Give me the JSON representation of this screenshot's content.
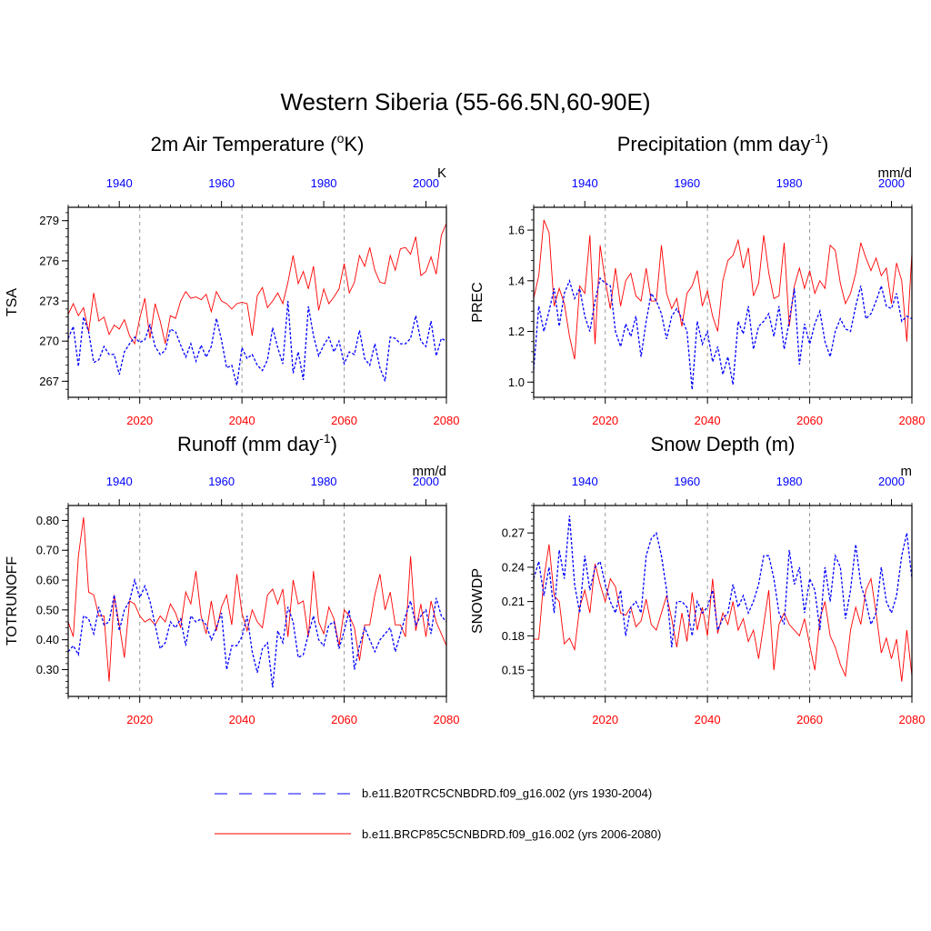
{
  "figure": {
    "title": "Western Siberia (55-66.5N,60-90E)",
    "legend": [
      {
        "label": "b.e11.B20TRC5CNBDRD.f09_g16.002 (yrs 1930-2004)",
        "color": "#0000ff",
        "style": "dashed"
      },
      {
        "label": "b.e11.BRCP85C5CNBDRD.f09_g16.002 (yrs 2006-2080)",
        "color": "#ff0000",
        "style": "solid"
      }
    ]
  },
  "colors": {
    "future": "#ff0000",
    "historical": "#0000ff",
    "frame": "#000000",
    "gridline": "#999999"
  },
  "chart_data": [
    {
      "type": "line",
      "title_main": "2m Air Temperature (",
      "title_sup": "o",
      "title_tail": "K)",
      "ylabel": "TSA",
      "units": "K",
      "ylim": [
        265.8,
        280
      ],
      "yticks": [
        267,
        270,
        273,
        276,
        279
      ],
      "ytick_labels": [
        "267",
        "270",
        "273",
        "276",
        "279"
      ],
      "minor_step": 0.6,
      "bottom_xlim": [
        2006,
        2080
      ],
      "bottom_xticks": [
        2020,
        2040,
        2060,
        2080
      ],
      "top_xlim": [
        1930,
        2004
      ],
      "top_xticks": [
        1940,
        1960,
        1980,
        2000
      ],
      "grid_x": [
        2020,
        2040,
        2060
      ],
      "series": [
        {
          "name": "b.e11.BRCP85C5CNBDRD.f09_g16.002 (yrs 2006-2080)",
          "axis": "bottom",
          "x_start": 2006,
          "values": [
            272.0,
            272.8,
            271.9,
            272.5,
            270.7,
            273.6,
            271.5,
            271.8,
            270.5,
            271.2,
            270.9,
            271.6,
            270.4,
            269.8,
            271.7,
            273.2,
            270.2,
            272.8,
            271.5,
            269.8,
            271.9,
            271.7,
            273.0,
            273.7,
            273.2,
            273.3,
            273.1,
            273.5,
            272.2,
            273.7,
            273.0,
            272.8,
            272.4,
            272.8,
            272.9,
            272.8,
            270.4,
            273.4,
            274.0,
            272.5,
            273.0,
            273.6,
            272.8,
            274.4,
            276.4,
            274.3,
            275.2,
            273.9,
            275.6,
            272.3,
            273.9,
            272.8,
            273.3,
            273.9,
            275.8,
            273.6,
            274.4,
            276.4,
            275.6,
            277.0,
            275.3,
            274.4,
            274.3,
            276.4,
            275.3,
            276.9,
            277.0,
            276.5,
            277.8,
            274.9,
            275.2,
            276.3,
            275.0,
            277.9,
            278.8
          ]
        },
        {
          "name": "b.e11.B20TRC5CNBDRD.f09_g16.002 (yrs 1930-2004)",
          "axis": "top",
          "x_start": 1930,
          "values": [
            270.2,
            271.1,
            268.1,
            271.8,
            270.7,
            268.4,
            268.6,
            269.6,
            269.0,
            269.0,
            267.5,
            269.2,
            269.8,
            270.3,
            269.9,
            270.1,
            271.2,
            269.6,
            269.0,
            269.3,
            270.9,
            270.7,
            269.7,
            268.8,
            269.8,
            268.5,
            269.7,
            268.8,
            269.6,
            271.7,
            270.1,
            268.0,
            268.2,
            266.7,
            269.5,
            268.7,
            269.0,
            268.2,
            267.8,
            268.6,
            271.0,
            269.5,
            268.3,
            273.0,
            267.6,
            269.2,
            267.1,
            272.6,
            270.4,
            268.9,
            269.7,
            270.3,
            269.2,
            270.0,
            268.3,
            269.2,
            269.0,
            270.8,
            268.7,
            268.2,
            269.8,
            268.0,
            267.0,
            270.3,
            270.2,
            269.8,
            269.8,
            270.2,
            271.9,
            270.0,
            269.6,
            271.5,
            268.9,
            270.2,
            270.0
          ]
        }
      ]
    },
    {
      "type": "line",
      "title_main": "Precipitation (mm day",
      "title_sup": "-1",
      "title_tail": ")",
      "ylabel": "PREC",
      "units": "mm/d",
      "ylim": [
        0.94,
        1.69
      ],
      "yticks": [
        1.0,
        1.2,
        1.4,
        1.6
      ],
      "ytick_labels": [
        "1.0",
        "1.2",
        "1.4",
        "1.6"
      ],
      "minor_step": 0.04,
      "bottom_xlim": [
        2006,
        2080
      ],
      "bottom_xticks": [
        2020,
        2040,
        2060,
        2080
      ],
      "top_xlim": [
        1930,
        2004
      ],
      "top_xticks": [
        1940,
        1960,
        1980,
        2000
      ],
      "grid_x": [
        2020,
        2040,
        2060
      ],
      "series": [
        {
          "name": "b.e11.BRCP85C5CNBDRD.f09_g16.002 (yrs 2006-2080)",
          "axis": "bottom",
          "x_start": 2006,
          "values": [
            1.33,
            1.42,
            1.64,
            1.59,
            1.3,
            1.37,
            1.31,
            1.18,
            1.09,
            1.38,
            1.35,
            1.58,
            1.15,
            1.54,
            1.4,
            1.29,
            1.45,
            1.3,
            1.4,
            1.43,
            1.34,
            1.32,
            1.45,
            1.32,
            1.32,
            1.54,
            1.35,
            1.29,
            1.33,
            1.22,
            1.35,
            1.38,
            1.44,
            1.3,
            1.36,
            1.26,
            1.2,
            1.4,
            1.48,
            1.5,
            1.56,
            1.45,
            1.53,
            1.34,
            1.39,
            1.58,
            1.43,
            1.33,
            1.34,
            1.55,
            1.22,
            1.38,
            1.45,
            1.37,
            1.44,
            1.35,
            1.4,
            1.37,
            1.54,
            1.52,
            1.39,
            1.31,
            1.35,
            1.43,
            1.55,
            1.49,
            1.44,
            1.49,
            1.42,
            1.45,
            1.31,
            1.47,
            1.4,
            1.16,
            1.51
          ]
        },
        {
          "name": "b.e11.B20TRC5CNBDRD.f09_g16.002 (yrs 1930-2004)",
          "axis": "top",
          "x_start": 1930,
          "values": [
            1.05,
            1.3,
            1.2,
            1.28,
            1.37,
            1.22,
            1.35,
            1.4,
            1.33,
            1.37,
            1.26,
            1.2,
            1.32,
            1.41,
            1.39,
            1.38,
            1.2,
            1.14,
            1.23,
            1.18,
            1.26,
            1.1,
            1.24,
            1.35,
            1.32,
            1.27,
            1.17,
            1.26,
            1.29,
            1.25,
            1.2,
            0.97,
            1.24,
            1.15,
            1.2,
            1.08,
            1.14,
            1.03,
            1.1,
            0.99,
            1.24,
            1.19,
            1.3,
            1.13,
            1.22,
            1.24,
            1.27,
            1.18,
            1.3,
            1.13,
            1.24,
            1.37,
            1.07,
            1.23,
            1.15,
            1.23,
            1.28,
            1.16,
            1.1,
            1.2,
            1.25,
            1.21,
            1.2,
            1.3,
            1.38,
            1.25,
            1.27,
            1.32,
            1.38,
            1.3,
            1.29,
            1.35,
            1.24,
            1.26,
            1.25
          ]
        }
      ]
    },
    {
      "type": "line",
      "title_main": "Runoff (mm day",
      "title_sup": "-1",
      "title_tail": ")",
      "ylabel": "TOTRUNOFF",
      "units": "mm/d",
      "ylim": [
        0.21,
        0.85
      ],
      "yticks": [
        0.3,
        0.4,
        0.5,
        0.6,
        0.7,
        0.8
      ],
      "ytick_labels": [
        "0.30",
        "0.40",
        "0.50",
        "0.60",
        "0.70",
        "0.80"
      ],
      "minor_step": 0.02,
      "bottom_xlim": [
        2006,
        2080
      ],
      "bottom_xticks": [
        2020,
        2040,
        2060,
        2080
      ],
      "top_xlim": [
        1930,
        2004
      ],
      "top_xticks": [
        1940,
        1960,
        1980,
        2000
      ],
      "grid_x": [
        2020,
        2040,
        2060
      ],
      "series": [
        {
          "name": "b.e11.BRCP85C5CNBDRD.f09_g16.002 (yrs 2006-2080)",
          "axis": "bottom",
          "x_start": 2006,
          "values": [
            0.46,
            0.41,
            0.68,
            0.81,
            0.56,
            0.55,
            0.48,
            0.48,
            0.26,
            0.55,
            0.45,
            0.34,
            0.53,
            0.52,
            0.48,
            0.46,
            0.47,
            0.45,
            0.48,
            0.46,
            0.52,
            0.49,
            0.44,
            0.56,
            0.52,
            0.63,
            0.48,
            0.42,
            0.53,
            0.43,
            0.51,
            0.55,
            0.45,
            0.62,
            0.49,
            0.43,
            0.5,
            0.46,
            0.44,
            0.55,
            0.57,
            0.52,
            0.57,
            0.41,
            0.6,
            0.52,
            0.53,
            0.41,
            0.63,
            0.46,
            0.42,
            0.51,
            0.47,
            0.38,
            0.5,
            0.48,
            0.44,
            0.33,
            0.45,
            0.45,
            0.55,
            0.62,
            0.5,
            0.56,
            0.45,
            0.45,
            0.41,
            0.68,
            0.43,
            0.52,
            0.41,
            0.53,
            0.46,
            0.42,
            0.38
          ]
        },
        {
          "name": "b.e11.B20TRC5CNBDRD.f09_g16.002 (yrs 1930-2004)",
          "axis": "top",
          "x_start": 1930,
          "values": [
            0.36,
            0.38,
            0.35,
            0.48,
            0.47,
            0.42,
            0.51,
            0.45,
            0.46,
            0.55,
            0.43,
            0.5,
            0.53,
            0.6,
            0.54,
            0.58,
            0.53,
            0.45,
            0.37,
            0.39,
            0.46,
            0.44,
            0.47,
            0.38,
            0.48,
            0.46,
            0.47,
            0.45,
            0.4,
            0.44,
            0.49,
            0.3,
            0.38,
            0.38,
            0.41,
            0.48,
            0.36,
            0.29,
            0.37,
            0.39,
            0.24,
            0.43,
            0.39,
            0.51,
            0.46,
            0.34,
            0.35,
            0.42,
            0.48,
            0.4,
            0.38,
            0.45,
            0.46,
            0.37,
            0.43,
            0.5,
            0.3,
            0.38,
            0.44,
            0.4,
            0.36,
            0.4,
            0.42,
            0.44,
            0.36,
            0.42,
            0.48,
            0.53,
            0.45,
            0.48,
            0.5,
            0.42,
            0.54,
            0.48,
            0.46
          ]
        }
      ]
    },
    {
      "type": "line",
      "title_main": "Snow Depth (m)",
      "title_sup": "",
      "title_tail": "",
      "ylabel": "SNOWDP",
      "units": "m",
      "ylim": [
        0.127,
        0.294
      ],
      "yticks": [
        0.15,
        0.18,
        0.21,
        0.24,
        0.27
      ],
      "ytick_labels": [
        "0.15",
        "0.18",
        "0.21",
        "0.24",
        "0.27"
      ],
      "minor_step": 0.006,
      "bottom_xlim": [
        2006,
        2080
      ],
      "bottom_xticks": [
        2020,
        2040,
        2060,
        2080
      ],
      "top_xlim": [
        1930,
        2004
      ],
      "top_xticks": [
        1940,
        1960,
        1980,
        2000
      ],
      "grid_x": [
        2020,
        2040,
        2060
      ],
      "series": [
        {
          "name": "b.e11.BRCP85C5CNBDRD.f09_g16.002 (yrs 2006-2080)",
          "axis": "bottom",
          "x_start": 2006,
          "values": [
            0.177,
            0.177,
            0.23,
            0.26,
            0.215,
            0.21,
            0.173,
            0.178,
            0.168,
            0.205,
            0.22,
            0.2,
            0.243,
            0.225,
            0.21,
            0.23,
            0.223,
            0.2,
            0.198,
            0.205,
            0.188,
            0.193,
            0.212,
            0.19,
            0.185,
            0.2,
            0.215,
            0.195,
            0.17,
            0.2,
            0.175,
            0.218,
            0.185,
            0.205,
            0.18,
            0.23,
            0.182,
            0.2,
            0.19,
            0.21,
            0.185,
            0.195,
            0.175,
            0.185,
            0.16,
            0.19,
            0.22,
            0.15,
            0.19,
            0.2,
            0.19,
            0.185,
            0.18,
            0.195,
            0.172,
            0.15,
            0.195,
            0.21,
            0.18,
            0.17,
            0.155,
            0.145,
            0.185,
            0.205,
            0.19,
            0.22,
            0.23,
            0.2,
            0.165,
            0.178,
            0.16,
            0.177,
            0.14,
            0.185,
            0.145
          ]
        },
        {
          "name": "b.e11.B20TRC5CNBDRD.f09_g16.002 (yrs 1930-2004)",
          "axis": "top",
          "x_start": 1930,
          "values": [
            0.23,
            0.245,
            0.215,
            0.24,
            0.2,
            0.255,
            0.23,
            0.285,
            0.225,
            0.2,
            0.25,
            0.22,
            0.24,
            0.245,
            0.225,
            0.21,
            0.2,
            0.22,
            0.18,
            0.205,
            0.21,
            0.2,
            0.25,
            0.265,
            0.27,
            0.25,
            0.22,
            0.17,
            0.21,
            0.21,
            0.205,
            0.18,
            0.21,
            0.2,
            0.205,
            0.22,
            0.185,
            0.195,
            0.2,
            0.225,
            0.205,
            0.215,
            0.2,
            0.21,
            0.225,
            0.25,
            0.25,
            0.23,
            0.2,
            0.19,
            0.255,
            0.225,
            0.24,
            0.2,
            0.23,
            0.22,
            0.185,
            0.24,
            0.21,
            0.25,
            0.24,
            0.195,
            0.22,
            0.26,
            0.225,
            0.21,
            0.19,
            0.2,
            0.24,
            0.21,
            0.2,
            0.215,
            0.25,
            0.27,
            0.23
          ]
        }
      ]
    }
  ]
}
